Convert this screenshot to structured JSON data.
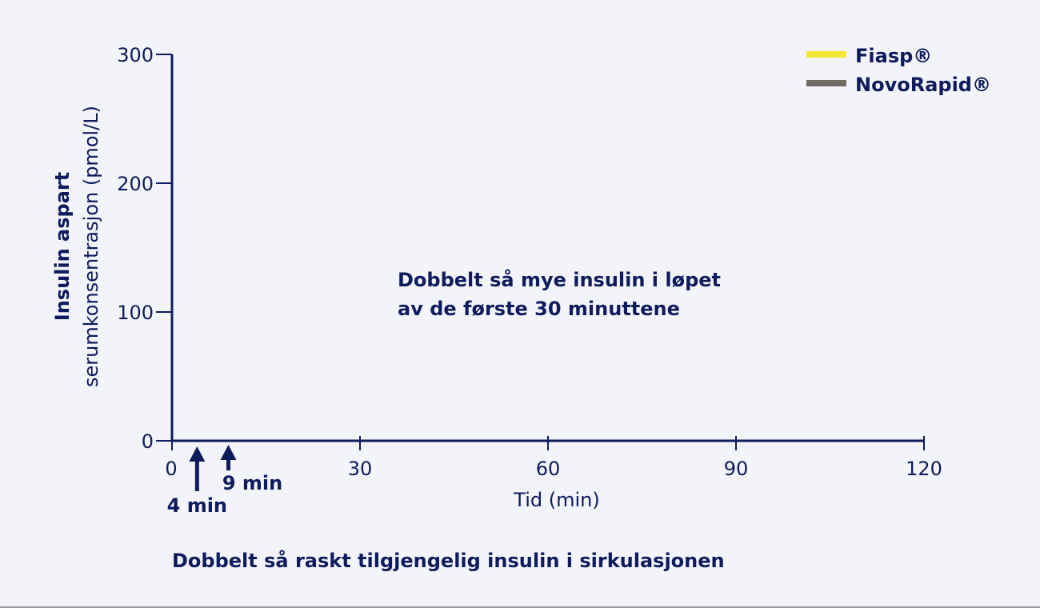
{
  "chart_data": {
    "type": "line",
    "ylabel_bold": "Insulin aspart",
    "ylabel": "serumkonsentrasjon (pmol/L)",
    "xlabel": "Tid (min)",
    "xlim": [
      0,
      120
    ],
    "ylim": [
      0,
      300
    ],
    "x_ticks": [
      0,
      30,
      60,
      90,
      120
    ],
    "y_ticks": [
      0,
      100,
      200,
      300
    ],
    "series": [
      {
        "name": "Fiasp®",
        "color": "#f5e632",
        "x": [],
        "y": []
      },
      {
        "name": "NovoRapid®",
        "color": "#716a62",
        "x": [],
        "y": []
      }
    ],
    "legend": "top-right",
    "grid": false,
    "annotations": {
      "center_line1": "Dobbelt så mye insulin i løpet",
      "center_line2": "av de første 30 minuttene",
      "bottom": "Dobbelt så raskt tilgjengelig insulin i sirkulasjonen",
      "arrow_4_label": "4 min",
      "arrow_4_x": 4,
      "arrow_9_label": "9 min",
      "arrow_9_x": 9
    },
    "colors": {
      "axis": "#0e1b5c"
    }
  }
}
